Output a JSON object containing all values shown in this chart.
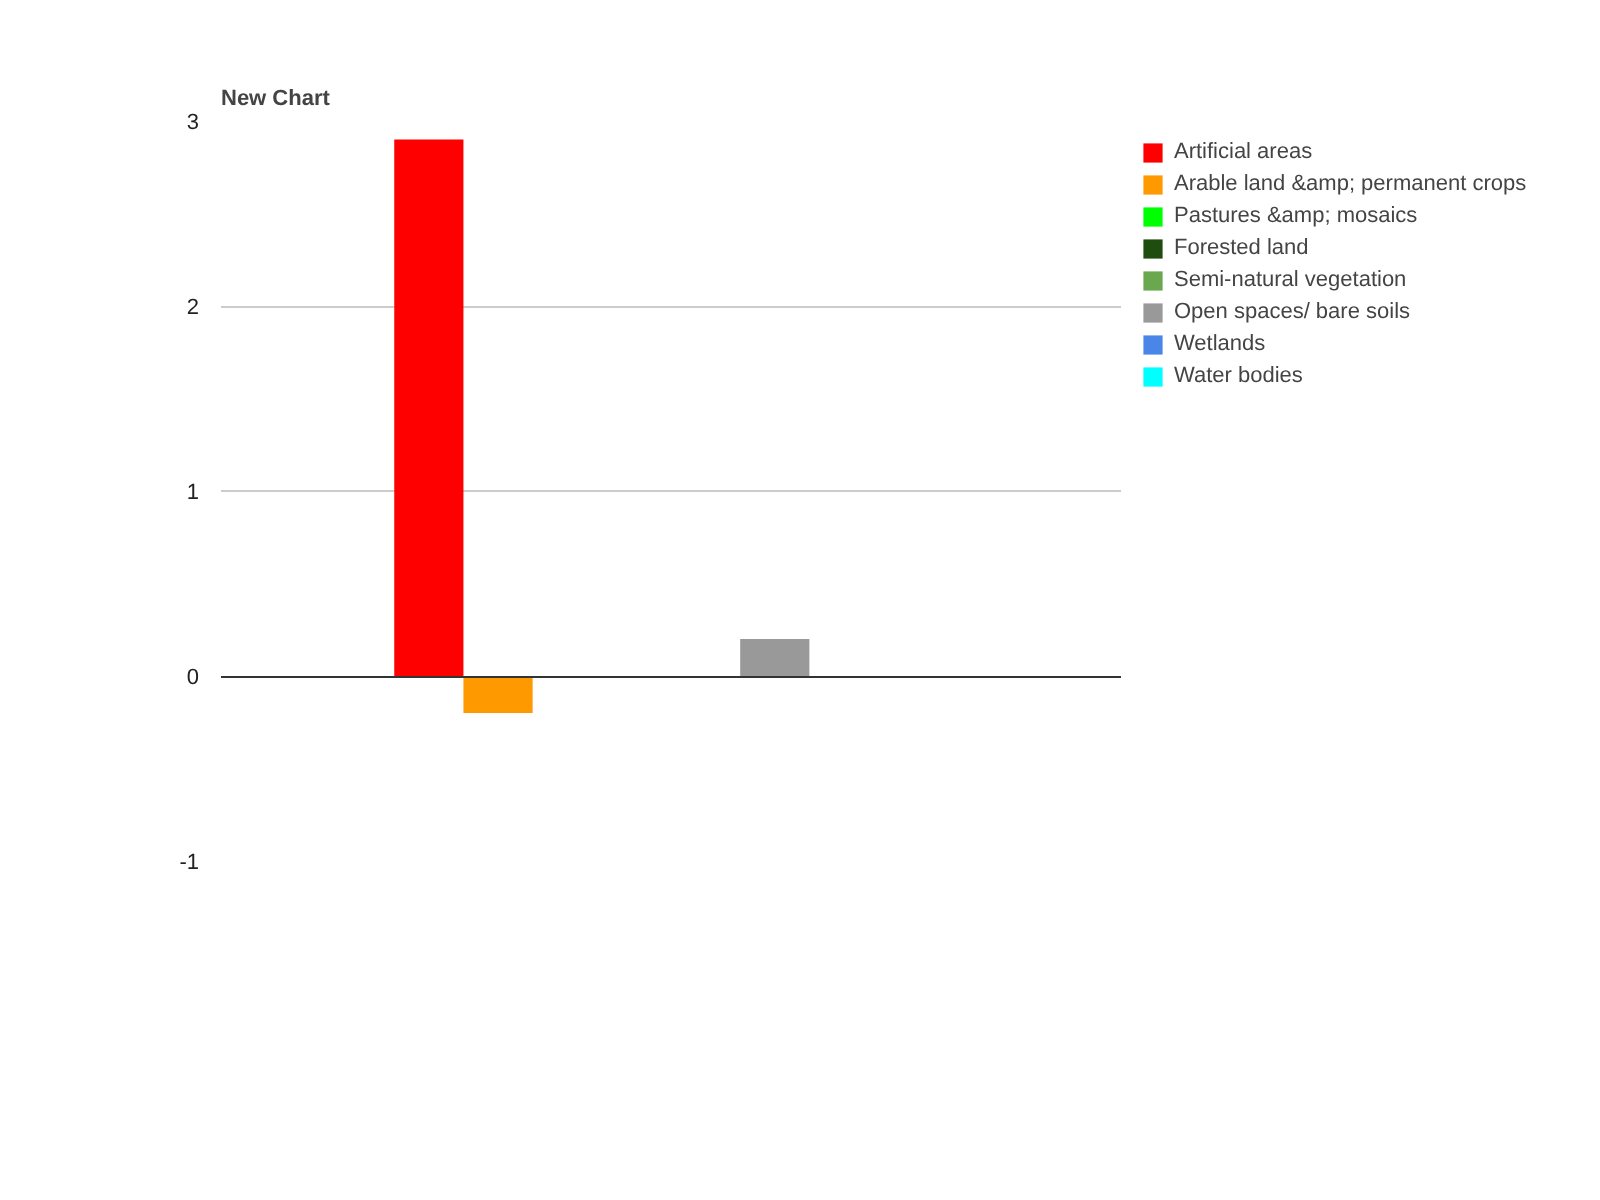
{
  "chart_data": {
    "type": "bar",
    "title": "New Chart",
    "categories": [
      null
    ],
    "series": [
      {
        "name": "Artificial areas",
        "color": "#ff0000",
        "values": [
          2.9
        ]
      },
      {
        "name": "Arable land &amp; permanent crops",
        "color": "#ff9900",
        "values": [
          -0.2
        ]
      },
      {
        "name": "Pastures &amp; mosaics",
        "color": "#00ff00",
        "values": [
          0
        ]
      },
      {
        "name": "Forested land",
        "color": "#1e4d0f",
        "values": [
          0
        ]
      },
      {
        "name": "Semi-natural vegetation",
        "color": "#6aa84f",
        "values": [
          0
        ]
      },
      {
        "name": "Open spaces/ bare soils",
        "color": "#999999",
        "values": [
          0.2
        ]
      },
      {
        "name": "Wetlands",
        "color": "#4a86e8",
        "values": [
          0
        ]
      },
      {
        "name": "Water bodies",
        "color": "#00ffff",
        "values": [
          0
        ]
      }
    ],
    "ylim": [
      -1,
      3
    ],
    "yticks": [
      -1,
      0,
      1,
      2,
      3
    ],
    "grid": "y",
    "legend": "right"
  }
}
